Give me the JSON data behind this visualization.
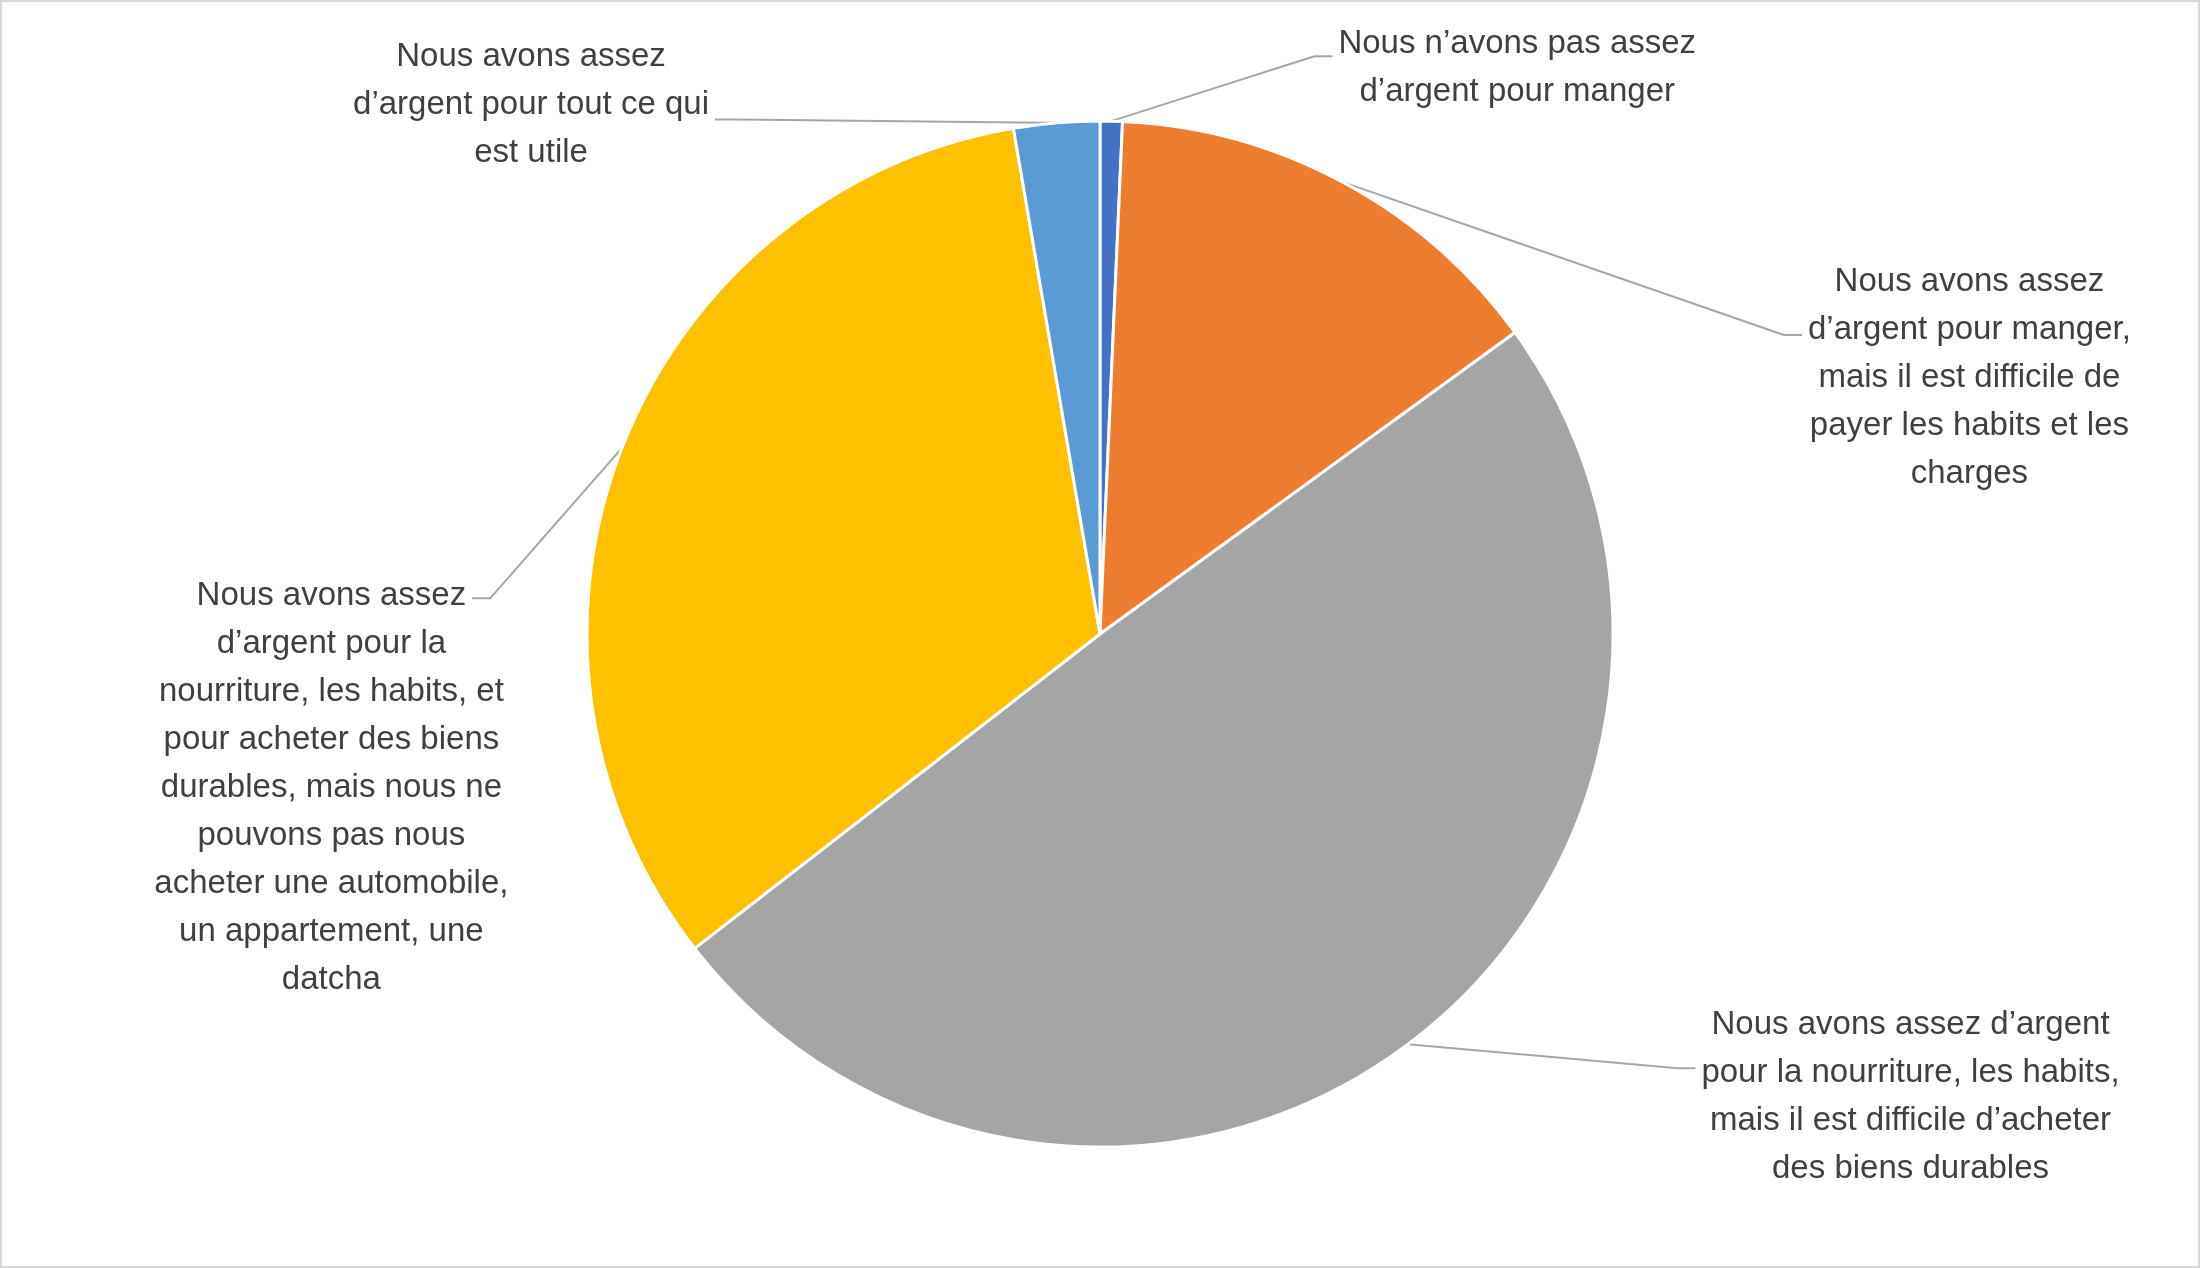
{
  "chart_data": {
    "type": "pie",
    "categories": [
      "Nous n’avons pas assez d’argent pour manger",
      "Nous avons assez d’argent pour manger, mais il est difficile de payer les habits et les charges",
      "Nous avons assez d’argent pour la nourriture, les habits, mais il est difficile d’acheter des biens durables",
      "Nous avons assez d’argent pour la nourriture, les habits, et pour acheter des biens durables, mais nous ne pouvons pas nous acheter une automobile, un appartement, une datcha",
      "Nous avons assez d’argent pour tout ce qui est utile"
    ],
    "values": [
      0.7,
      14.3,
      49.5,
      32.8,
      2.7
    ],
    "colors": [
      "#4472c4",
      "#ed7d31",
      "#a5a5a5",
      "#ffc000",
      "#5b9bd5"
    ]
  }
}
